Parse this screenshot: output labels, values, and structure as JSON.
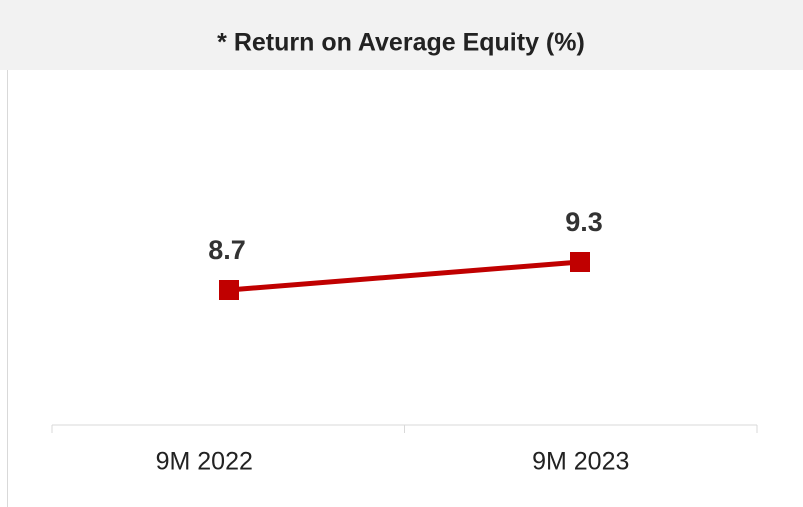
{
  "chart_data": {
    "type": "line",
    "title": "* Return on Average Equity (%)",
    "categories": [
      "9M 2022",
      "9M 2023"
    ],
    "series": [
      {
        "name": "Return on Average Equity",
        "color": "#c00000",
        "values": [
          8.7,
          9.3
        ]
      }
    ]
  }
}
